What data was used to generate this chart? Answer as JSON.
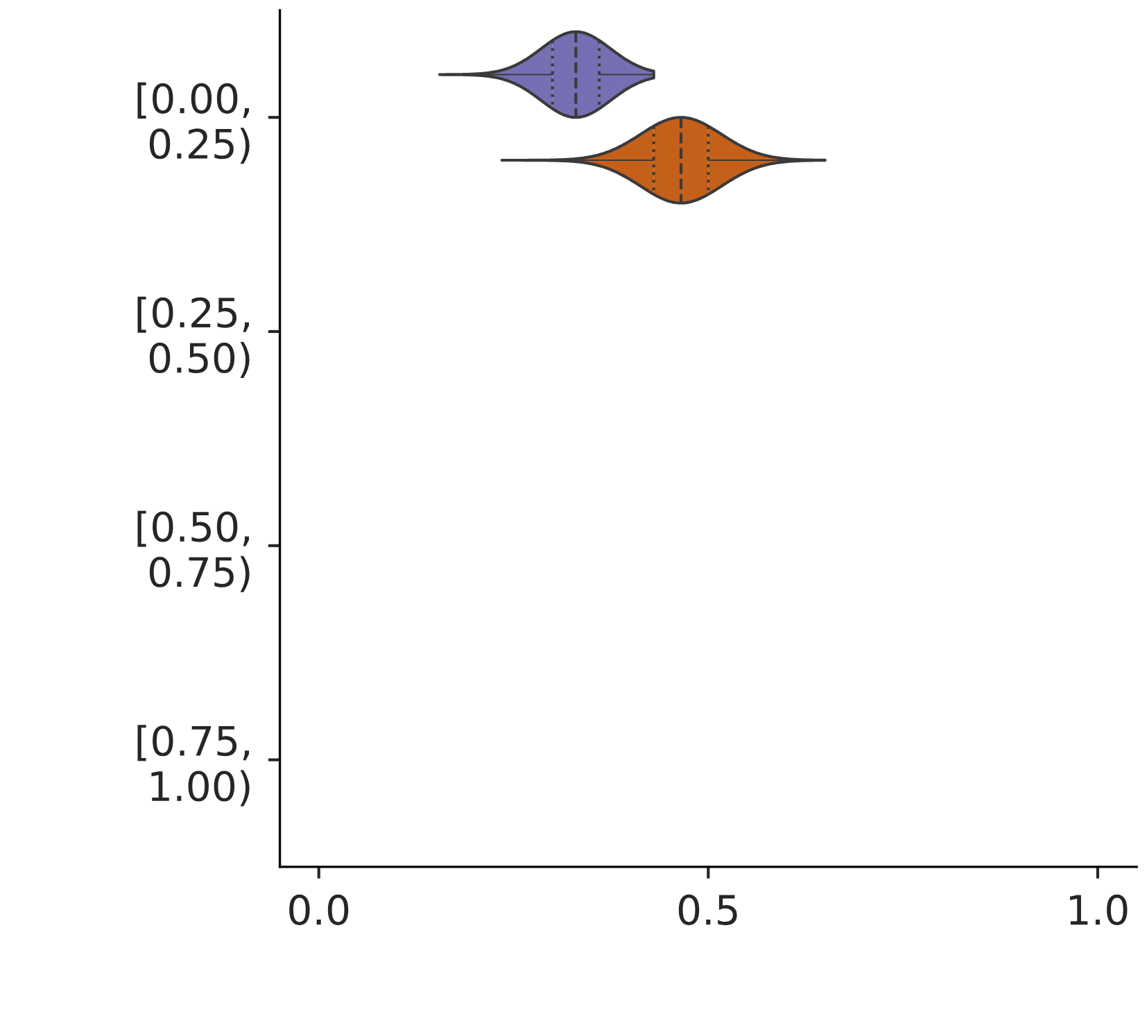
{
  "chart_data": {
    "type": "box",
    "orientation": "horizontal",
    "categories": [
      "[0.00,\n0.25)",
      "[0.25,\n0.50)",
      "[0.50,\n0.75)",
      "[0.75,\n1.00)"
    ],
    "series": [
      {
        "color": "#7570b3",
        "boxes": [
          {
            "low": 0.155,
            "q1": 0.3,
            "median": 0.33,
            "q3": 0.36,
            "high": 0.43
          },
          null,
          null,
          null
        ]
      },
      {
        "color": "#c5601a",
        "boxes": [
          {
            "low": 0.235,
            "q1": 0.43,
            "median": 0.465,
            "q3": 0.5,
            "high": 0.65
          },
          null,
          null,
          null
        ]
      }
    ],
    "xlim": [
      -0.05,
      1.05
    ],
    "xticks": [
      {
        "value": 0.0,
        "label": "0.0"
      },
      {
        "value": 0.5,
        "label": "0.5"
      },
      {
        "value": 1.0,
        "label": "1.0"
      }
    ],
    "grid": false,
    "legend": false
  }
}
